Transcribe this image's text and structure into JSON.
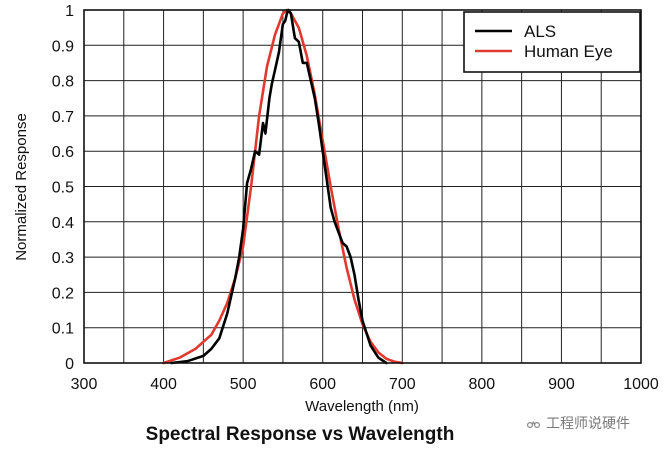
{
  "chart_data": {
    "type": "line",
    "title": "Spectral Response vs Wavelength",
    "xlabel": "Wavelength (nm)",
    "ylabel": "Normalized Response",
    "xlim": [
      300,
      1000
    ],
    "ylim": [
      0,
      1
    ],
    "xticks": [
      300,
      400,
      500,
      600,
      700,
      800,
      900,
      1000
    ],
    "yticks": [
      0,
      0.1,
      0.2,
      0.3,
      0.4,
      0.5,
      0.6,
      0.7,
      0.8,
      0.9,
      1
    ],
    "xtick_labels": [
      "300",
      "400",
      "500",
      "600",
      "700",
      "800",
      "900",
      "1000"
    ],
    "ytick_labels": [
      "0",
      "0.1",
      "0.2",
      "0.3",
      "0.4",
      "0.5",
      "0.6",
      "0.7",
      "0.8",
      "0.9",
      "1"
    ],
    "grid": true,
    "legend_position": "top-right",
    "series": [
      {
        "name": "ALS",
        "color": "#000000",
        "x": [
          410,
          430,
          450,
          460,
          470,
          480,
          490,
          495,
          500,
          505,
          510,
          515,
          520,
          525,
          528,
          533,
          536,
          540,
          545,
          550,
          553,
          555,
          557,
          560,
          565,
          570,
          575,
          580,
          585,
          590,
          595,
          600,
          605,
          610,
          615,
          620,
          625,
          630,
          635,
          640,
          645,
          650,
          660,
          670,
          680
        ],
        "y": [
          0,
          0.005,
          0.02,
          0.04,
          0.07,
          0.14,
          0.24,
          0.3,
          0.38,
          0.51,
          0.55,
          0.6,
          0.59,
          0.68,
          0.65,
          0.75,
          0.79,
          0.83,
          0.88,
          0.96,
          0.97,
          0.99,
          1.0,
          0.99,
          0.92,
          0.91,
          0.85,
          0.85,
          0.8,
          0.75,
          0.68,
          0.6,
          0.52,
          0.44,
          0.4,
          0.37,
          0.34,
          0.33,
          0.3,
          0.25,
          0.18,
          0.12,
          0.05,
          0.015,
          0
        ]
      },
      {
        "name": "Human Eye",
        "color": "#e03a2f",
        "x": [
          400,
          420,
          440,
          460,
          470,
          480,
          490,
          500,
          510,
          520,
          530,
          540,
          550,
          555,
          560,
          570,
          580,
          590,
          600,
          610,
          620,
          630,
          640,
          650,
          660,
          670,
          680,
          690,
          700
        ],
        "y": [
          0,
          0.015,
          0.04,
          0.08,
          0.12,
          0.17,
          0.24,
          0.33,
          0.5,
          0.7,
          0.84,
          0.93,
          0.99,
          1.0,
          0.99,
          0.95,
          0.87,
          0.76,
          0.63,
          0.5,
          0.38,
          0.27,
          0.18,
          0.11,
          0.06,
          0.03,
          0.012,
          0.004,
          0
        ]
      }
    ]
  },
  "watermark": {
    "text": "工程师说硬件"
  }
}
